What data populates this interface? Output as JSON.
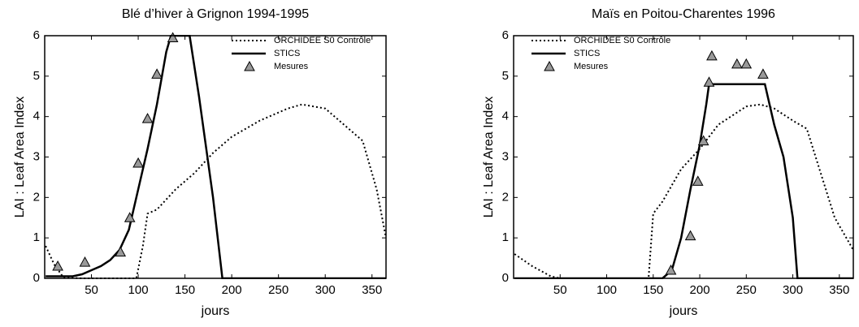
{
  "chart_data": [
    {
      "type": "line",
      "title": "Blé d’hiver à Grignon 1994-1995",
      "x_label": "jours",
      "y_label": "LAI : Leaf Area Index",
      "xlim": [
        0,
        365
      ],
      "ylim": [
        0,
        6
      ],
      "xticks": [
        50,
        100,
        150,
        200,
        250,
        300,
        350
      ],
      "yticks": [
        0,
        1,
        2,
        3,
        4,
        5,
        6
      ],
      "series": [
        {
          "name": "ORCHIDEE S0 Contrôle",
          "color": "#000000",
          "style": "dotted",
          "x": [
            1,
            10,
            20,
            40,
            60,
            80,
            98,
            105,
            110,
            120,
            140,
            160,
            180,
            200,
            230,
            260,
            275,
            300,
            320,
            340,
            355,
            365
          ],
          "values": [
            0.8,
            0.35,
            0.02,
            0,
            0,
            0,
            0,
            0.8,
            1.6,
            1.7,
            2.2,
            2.6,
            3.1,
            3.5,
            3.9,
            4.2,
            4.3,
            4.2,
            3.8,
            3.4,
            2.2,
            1.0
          ]
        },
        {
          "name": "STICS",
          "color": "#000000",
          "style": "solid",
          "x": [
            1,
            30,
            40,
            50,
            60,
            70,
            80,
            90,
            100,
            110,
            120,
            130,
            135,
            155,
            165,
            180,
            190,
            365
          ],
          "values": [
            0.05,
            0.05,
            0.1,
            0.2,
            0.3,
            0.45,
            0.7,
            1.2,
            2.2,
            3.2,
            4.3,
            5.6,
            6,
            6,
            4.5,
            2,
            0,
            0
          ]
        },
        {
          "name": "Mesures",
          "color": "#999999",
          "style": "triangle",
          "x": [
            14,
            43,
            81,
            91,
            100,
            110,
            120,
            137
          ],
          "values": [
            0.3,
            0.4,
            0.65,
            1.5,
            2.85,
            3.95,
            5.05,
            5.95
          ]
        }
      ]
    },
    {
      "type": "line",
      "title": "Maïs en Poitou-Charentes 1996",
      "x_label": "jours",
      "y_label": "LAI : Leaf Area Index",
      "xlim": [
        0,
        365
      ],
      "ylim": [
        0,
        6
      ],
      "xticks": [
        50,
        100,
        150,
        200,
        250,
        300,
        350
      ],
      "yticks": [
        0,
        1,
        2,
        3,
        4,
        5,
        6
      ],
      "series": [
        {
          "name": "ORCHIDEE S0 Contrôle",
          "color": "#000000",
          "style": "dotted",
          "x": [
            1,
            20,
            40,
            50,
            145,
            150,
            160,
            180,
            200,
            220,
            250,
            265,
            280,
            300,
            315,
            330,
            345,
            365
          ],
          "values": [
            0.6,
            0.3,
            0.05,
            0,
            0,
            1.6,
            1.9,
            2.7,
            3.2,
            3.8,
            4.25,
            4.3,
            4.2,
            3.9,
            3.7,
            2.6,
            1.5,
            0.7
          ]
        },
        {
          "name": "STICS",
          "color": "#000000",
          "style": "solid",
          "x": [
            1,
            160,
            170,
            180,
            190,
            200,
            207,
            210,
            270,
            280,
            290,
            300,
            305,
            365
          ],
          "values": [
            0,
            0,
            0.2,
            1.0,
            2.2,
            3.3,
            4.3,
            4.8,
            4.8,
            3.8,
            3.0,
            1.5,
            0,
            0
          ]
        },
        {
          "name": "Mesures",
          "color": "#999999",
          "style": "triangle",
          "x": [
            169,
            190,
            198,
            204,
            210,
            213,
            240,
            250,
            268
          ],
          "values": [
            0.2,
            1.05,
            2.4,
            3.4,
            4.85,
            5.5,
            5.3,
            5.3,
            5.05
          ]
        }
      ]
    }
  ]
}
